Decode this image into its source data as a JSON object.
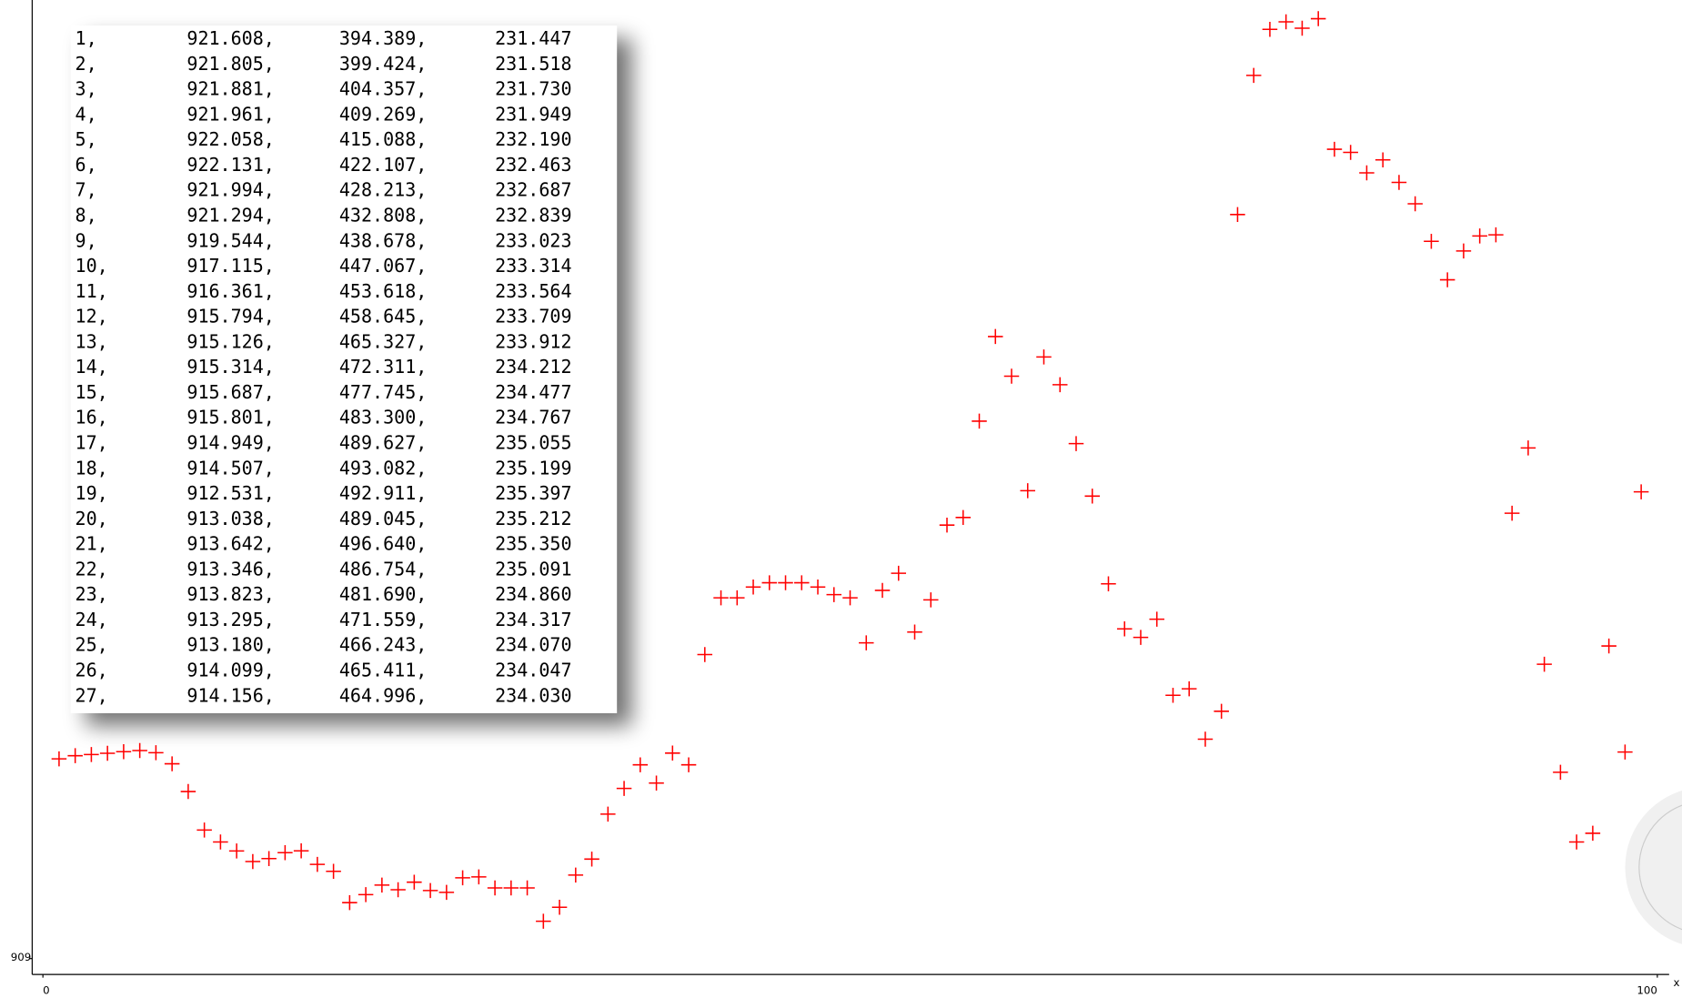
{
  "chart_data": {
    "type": "scatter",
    "color": "#ff0000",
    "xlabel": "x",
    "x": [
      1,
      2,
      3,
      4,
      5,
      6,
      7,
      8,
      9,
      10,
      11,
      12,
      13,
      14,
      15,
      16,
      17,
      18,
      19,
      20,
      21,
      22,
      23,
      24,
      25,
      26,
      27,
      28,
      29,
      30,
      31,
      32,
      33,
      34,
      35,
      36,
      37,
      38,
      39,
      40,
      41,
      42,
      43,
      44,
      45,
      46,
      47,
      48,
      49,
      50,
      51,
      52,
      53,
      54,
      55,
      56,
      57,
      58,
      59,
      60,
      61,
      62,
      63,
      64,
      65,
      66,
      67,
      68,
      69,
      70,
      71,
      72,
      73,
      74,
      75,
      76,
      77,
      78,
      79,
      80,
      81,
      82,
      83,
      84,
      85,
      86,
      87,
      88,
      89,
      90,
      91,
      92,
      93,
      94,
      95,
      96,
      97,
      98,
      99
    ],
    "values": [
      921.608,
      921.805,
      921.881,
      921.961,
      922.058,
      922.131,
      921.994,
      921.294,
      919.544,
      917.115,
      916.361,
      915.794,
      915.126,
      915.314,
      915.687,
      915.801,
      914.949,
      914.507,
      912.531,
      913.038,
      913.642,
      913.346,
      913.823,
      913.295,
      913.18,
      914.099,
      914.156,
      913.46,
      913.46,
      913.46,
      911.36,
      912.24,
      914.27,
      915.28,
      918.12,
      919.74,
      921.23,
      920.08,
      921.97,
      921.23,
      928.19,
      931.77,
      931.77,
      932.45,
      932.72,
      932.72,
      932.72,
      932.45,
      931.97,
      931.77,
      928.93,
      932.24,
      933.32,
      929.61,
      931.64,
      936.36,
      936.84,
      942.92,
      948.26,
      945.76,
      938.53,
      946.97,
      945.22,
      941.5,
      938.19,
      932.65,
      929.81,
      929.27,
      930.42,
      925.62,
      926.03,
      922.85,
      924.61,
      955.96,
      964.74,
      967.65,
      968.12,
      967.72,
      968.32,
      960.08,
      959.88,
      958.59,
      959.41,
      957.99,
      956.64,
      954.27,
      951.84,
      953.66,
      954.61,
      954.68,
      937.11,
      941.23,
      927.58,
      920.76,
      916.36,
      916.91,
      928.73,
      922.04,
      938.46
    ],
    "xlim": [
      0,
      100
    ],
    "xticks": [
      0,
      100
    ],
    "ylim": [
      908,
      969.5
    ],
    "yticks": [
      909
    ]
  },
  "table": {
    "rows": [
      [
        "1,",
        "921.608,",
        "394.389,",
        "231.447"
      ],
      [
        "2,",
        "921.805,",
        "399.424,",
        "231.518"
      ],
      [
        "3,",
        "921.881,",
        "404.357,",
        "231.730"
      ],
      [
        "4,",
        "921.961,",
        "409.269,",
        "231.949"
      ],
      [
        "5,",
        "922.058,",
        "415.088,",
        "232.190"
      ],
      [
        "6,",
        "922.131,",
        "422.107,",
        "232.463"
      ],
      [
        "7,",
        "921.994,",
        "428.213,",
        "232.687"
      ],
      [
        "8,",
        "921.294,",
        "432.808,",
        "232.839"
      ],
      [
        "9,",
        "919.544,",
        "438.678,",
        "233.023"
      ],
      [
        "10,",
        "917.115,",
        "447.067,",
        "233.314"
      ],
      [
        "11,",
        "916.361,",
        "453.618,",
        "233.564"
      ],
      [
        "12,",
        "915.794,",
        "458.645,",
        "233.709"
      ],
      [
        "13,",
        "915.126,",
        "465.327,",
        "233.912"
      ],
      [
        "14,",
        "915.314,",
        "472.311,",
        "234.212"
      ],
      [
        "15,",
        "915.687,",
        "477.745,",
        "234.477"
      ],
      [
        "16,",
        "915.801,",
        "483.300,",
        "234.767"
      ],
      [
        "17,",
        "914.949,",
        "489.627,",
        "235.055"
      ],
      [
        "18,",
        "914.507,",
        "493.082,",
        "235.199"
      ],
      [
        "19,",
        "912.531,",
        "492.911,",
        "235.397"
      ],
      [
        "20,",
        "913.038,",
        "489.045,",
        "235.212"
      ],
      [
        "21,",
        "913.642,",
        "496.640,",
        "235.350"
      ],
      [
        "22,",
        "913.346,",
        "486.754,",
        "235.091"
      ],
      [
        "23,",
        "913.823,",
        "481.690,",
        "234.860"
      ],
      [
        "24,",
        "913.295,",
        "471.559,",
        "234.317"
      ],
      [
        "25,",
        "913.180,",
        "466.243,",
        "234.070"
      ],
      [
        "26,",
        "914.099,",
        "465.411,",
        "234.047"
      ],
      [
        "27,",
        "914.156,",
        "464.996,",
        "234.030"
      ]
    ]
  }
}
